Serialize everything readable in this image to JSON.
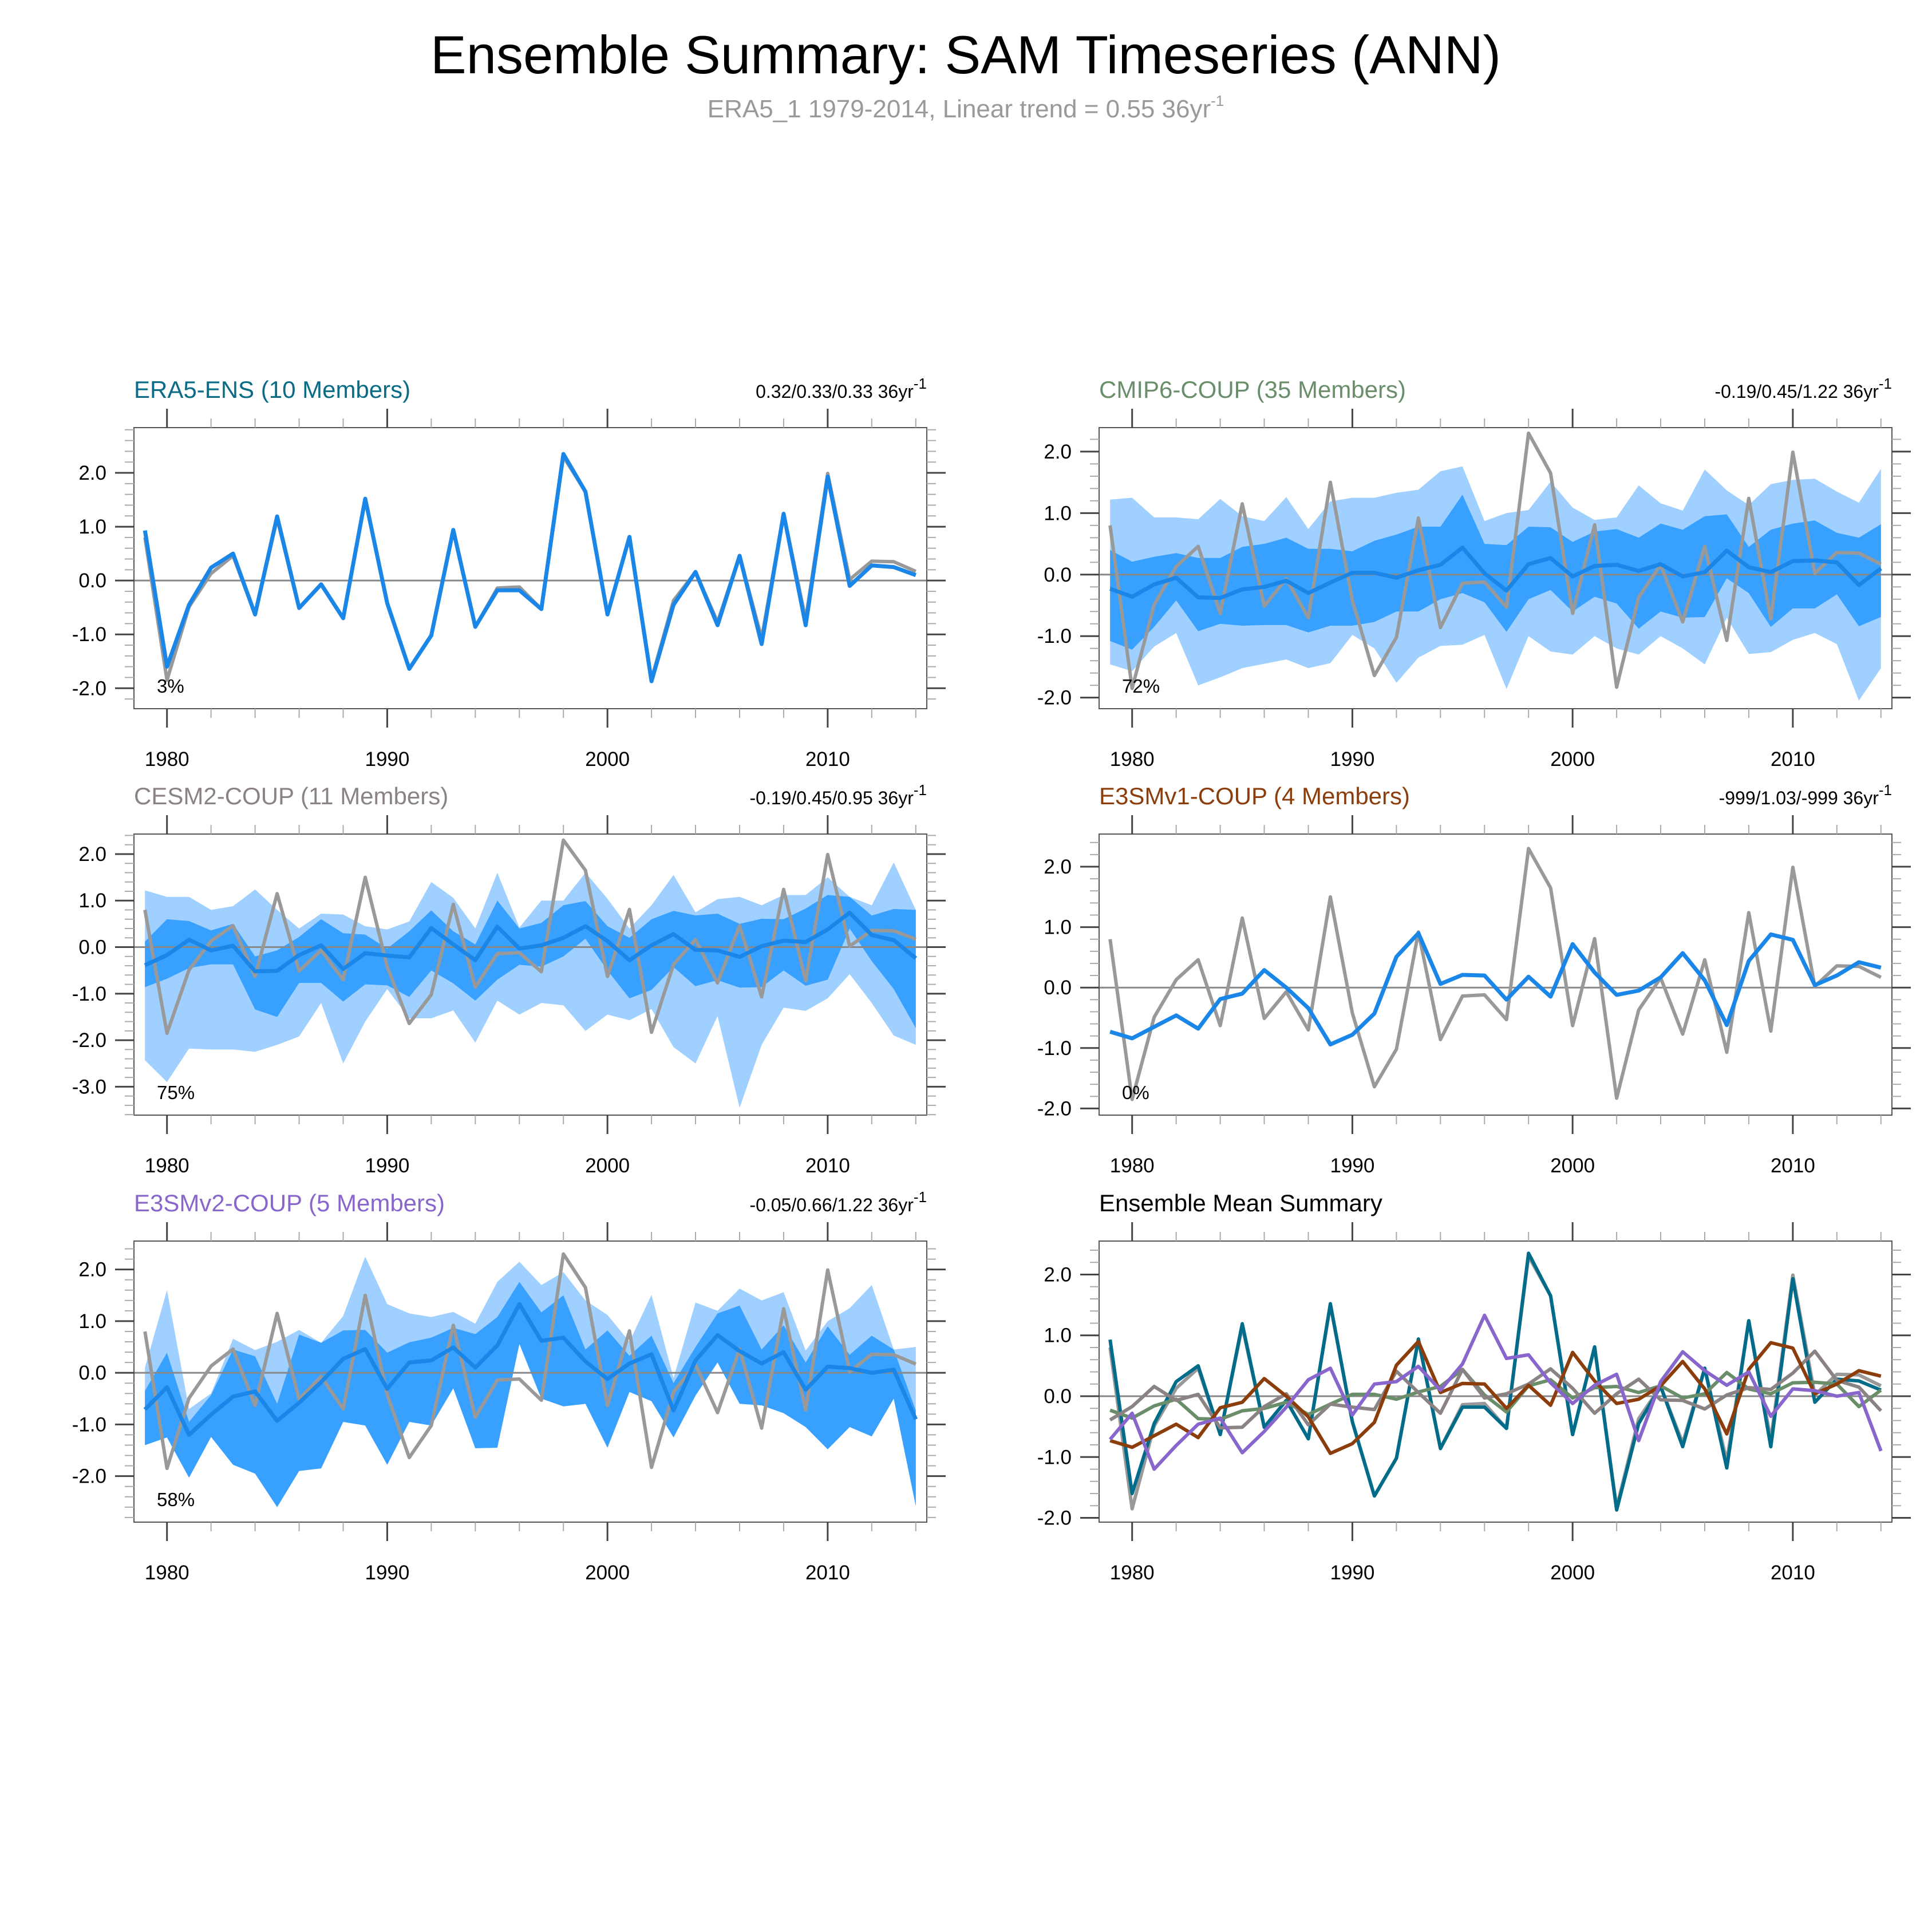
{
  "title": "Ensemble Summary: SAM Timeseries (ANN)",
  "subtitle": {
    "text": "ERA5_1 1979-2014, Linear trend = 0.55 36yr",
    "sup": "-1"
  },
  "colors": {
    "light_band": "#a0d0ff",
    "dark_band": "#38a0ff",
    "mean_line": "#1a86e8",
    "obs_line": "#999999",
    "zero_line": "#888888"
  },
  "chart_data": [
    {
      "type": "line",
      "title": "ERA5-ENS (10 Members)",
      "title_color": "#0a6b86",
      "trend": "0.32/0.33/0.33 36yr",
      "trend_sup": "-1",
      "percent": "3%",
      "ylim": [
        -2.38,
        2.84
      ],
      "yticks": [
        "2.0",
        "1.0",
        "0.0",
        "-1.0",
        "-2.0"
      ],
      "xticks": [
        "1980",
        "1990",
        "2000",
        "2010"
      ],
      "xlim": [
        1978.5,
        2014.5
      ],
      "mean": [
        0.93,
        -1.6,
        -0.45,
        0.24,
        0.5,
        -0.63,
        1.19,
        -0.51,
        -0.07,
        -0.7,
        1.52,
        -0.42,
        -1.64,
        -1.02,
        0.94,
        -0.86,
        -0.18,
        -0.18,
        -0.53,
        2.35,
        1.65,
        -0.63,
        0.81,
        -1.87,
        -0.45,
        0.16,
        -0.83,
        0.46,
        -1.18,
        1.24,
        -0.83,
        1.93,
        -0.1,
        0.28,
        0.25,
        0.1
      ]
    },
    {
      "type": "area",
      "title": "CMIP6-COUP (35 Members)",
      "title_color": "#6a8e6a",
      "trend": "-0.19/0.45/1.22 36yr",
      "trend_sup": "-1",
      "percent": "72%",
      "ylim": [
        -2.18,
        2.39
      ],
      "yticks": [
        "2.0",
        "1.0",
        "0.0",
        "-1.0",
        "-2.0"
      ],
      "xticks": [
        "1980",
        "1990",
        "2000",
        "2010"
      ],
      "xlim": [
        1978.5,
        2014.5
      ],
      "mean": [
        -0.23,
        -0.36,
        -0.16,
        -0.05,
        -0.37,
        -0.38,
        -0.24,
        -0.2,
        -0.1,
        -0.3,
        -0.13,
        0.03,
        0.03,
        -0.05,
        0.07,
        0.16,
        0.44,
        0.02,
        -0.26,
        0.17,
        0.27,
        -0.03,
        0.14,
        0.16,
        0.06,
        0.17,
        -0.03,
        0.04,
        0.39,
        0.12,
        0.04,
        0.22,
        0.23,
        0.2,
        -0.17,
        0.1
      ],
      "inner_upper": [
        0.4,
        0.21,
        0.29,
        0.35,
        0.27,
        0.27,
        0.45,
        0.5,
        0.6,
        0.42,
        0.42,
        0.38,
        0.55,
        0.65,
        0.78,
        0.78,
        1.3,
        0.5,
        0.48,
        0.78,
        0.77,
        0.53,
        0.7,
        0.74,
        0.6,
        0.83,
        0.73,
        0.95,
        0.98,
        0.45,
        0.73,
        0.83,
        0.88,
        0.68,
        0.6,
        0.82
      ],
      "inner_lower": [
        -1.08,
        -1.22,
        -0.85,
        -0.42,
        -0.92,
        -0.8,
        -0.83,
        -0.82,
        -0.82,
        -0.94,
        -0.83,
        -0.83,
        -0.77,
        -0.6,
        -0.6,
        -0.4,
        -0.3,
        -0.45,
        -0.93,
        -0.4,
        -0.25,
        -0.6,
        -0.36,
        -0.47,
        -0.88,
        -0.6,
        -0.7,
        -0.69,
        -0.06,
        -0.3,
        -0.85,
        -0.55,
        -0.55,
        -0.32,
        -0.84,
        -0.69
      ],
      "outer_upper": [
        1.22,
        1.25,
        0.93,
        0.93,
        0.9,
        1.23,
        0.95,
        0.87,
        1.26,
        0.74,
        1.19,
        1.25,
        1.25,
        1.33,
        1.38,
        1.68,
        1.76,
        0.87,
        1.0,
        1.05,
        1.51,
        1.09,
        0.89,
        0.93,
        1.45,
        1.16,
        1.04,
        1.71,
        1.37,
        1.13,
        1.47,
        1.54,
        1.56,
        1.35,
        1.17,
        1.72
      ],
      "outer_lower": [
        -1.46,
        -1.57,
        -1.17,
        -0.95,
        -1.8,
        -1.67,
        -1.52,
        -1.45,
        -1.38,
        -1.52,
        -1.44,
        -0.98,
        -1.2,
        -1.76,
        -1.35,
        -1.16,
        -1.14,
        -0.98,
        -1.86,
        -1.0,
        -1.25,
        -1.3,
        -1.0,
        -1.2,
        -1.3,
        -1.0,
        -1.2,
        -1.46,
        -0.7,
        -1.29,
        -1.26,
        -1.06,
        -0.95,
        -1.13,
        -2.05,
        -1.52
      ]
    },
    {
      "type": "area",
      "title": "CESM2-COUP (11 Members)",
      "title_color": "#8a8283",
      "trend": "-0.19/0.45/0.95 36yr",
      "trend_sup": "-1",
      "percent": "75%",
      "ylim": [
        -3.61,
        2.43
      ],
      "yticks": [
        "2.0",
        "1.0",
        "0.0",
        "-1.0",
        "-2.0",
        "-3.0"
      ],
      "xticks": [
        "1980",
        "1990",
        "2000",
        "2010"
      ],
      "xlim": [
        1978.5,
        2014.5
      ],
      "mean": [
        -0.39,
        -0.17,
        0.16,
        -0.07,
        0.03,
        -0.52,
        -0.51,
        -0.17,
        0.04,
        -0.47,
        -0.13,
        -0.18,
        -0.22,
        0.41,
        0.06,
        -0.28,
        0.44,
        -0.03,
        0.04,
        0.2,
        0.45,
        0.13,
        -0.28,
        0.04,
        0.28,
        -0.06,
        -0.07,
        -0.21,
        0.02,
        0.14,
        0.11,
        0.38,
        0.74,
        0.26,
        0.15,
        -0.24
      ],
      "inner_upper": [
        0.12,
        0.6,
        0.56,
        0.36,
        0.5,
        -0.2,
        -0.07,
        0.22,
        0.6,
        0.3,
        0.27,
        -0.03,
        0.34,
        0.79,
        0.34,
        0.06,
        1.0,
        0.4,
        0.52,
        0.9,
        0.99,
        0.45,
        0.2,
        0.6,
        0.78,
        0.68,
        0.72,
        0.5,
        0.61,
        0.6,
        0.83,
        1.12,
        1.08,
        0.68,
        0.82,
        0.8
      ],
      "inner_lower": [
        -0.86,
        -0.68,
        -0.45,
        -0.37,
        -0.37,
        -1.34,
        -1.5,
        -0.77,
        -0.77,
        -1.17,
        -0.8,
        -0.82,
        -1.07,
        -0.5,
        -0.78,
        -1.15,
        -0.7,
        -0.38,
        -0.42,
        -0.2,
        0.18,
        -0.5,
        -1.1,
        -0.92,
        -0.43,
        -0.84,
        -0.71,
        -0.87,
        -0.86,
        -0.5,
        -0.83,
        -0.7,
        0.4,
        -0.3,
        -0.9,
        -1.74
      ],
      "outer_upper": [
        1.22,
        1.08,
        1.08,
        0.8,
        0.88,
        1.24,
        0.8,
        0.4,
        0.72,
        0.7,
        0.45,
        0.38,
        0.55,
        1.4,
        1.06,
        0.4,
        1.6,
        0.42,
        1.0,
        1.0,
        1.6,
        1.04,
        0.4,
        0.9,
        1.55,
        0.75,
        1.03,
        1.08,
        0.9,
        1.12,
        1.12,
        1.5,
        1.08,
        0.9,
        1.82,
        0.8
      ],
      "outer_lower": [
        -2.43,
        -2.9,
        -2.18,
        -2.2,
        -2.2,
        -2.25,
        -2.1,
        -1.92,
        -1.2,
        -2.5,
        -1.6,
        -0.9,
        -1.53,
        -1.53,
        -1.36,
        -2.05,
        -1.15,
        -1.45,
        -1.2,
        -1.25,
        -1.8,
        -1.45,
        -1.57,
        -1.33,
        -2.15,
        -2.5,
        -1.48,
        -3.45,
        -2.1,
        -1.3,
        -1.37,
        -1.1,
        -0.58,
        -1.2,
        -1.9,
        -2.1
      ]
    },
    {
      "type": "line",
      "title": "E3SMv1-COUP (4 Members)",
      "title_color": "#8b3d0c",
      "trend": "-999/1.03/-999 36yr",
      "trend_sup": "-1",
      "percent": "0%",
      "ylim": [
        -2.11,
        2.54
      ],
      "yticks": [
        "2.0",
        "1.0",
        "0.0",
        "-1.0",
        "-2.0"
      ],
      "xticks": [
        "1980",
        "1990",
        "2000",
        "2010"
      ],
      "xlim": [
        1978.5,
        2014.5
      ],
      "mean": [
        -0.73,
        -0.84,
        -0.65,
        -0.46,
        -0.68,
        -0.19,
        -0.1,
        0.29,
        0.0,
        -0.34,
        -0.94,
        -0.78,
        -0.43,
        0.51,
        0.9,
        0.06,
        0.21,
        0.2,
        -0.2,
        0.18,
        -0.15,
        0.72,
        0.25,
        -0.12,
        -0.05,
        0.17,
        0.57,
        0.12,
        -0.62,
        0.44,
        0.88,
        0.79,
        0.04,
        0.2,
        0.42,
        0.33
      ]
    },
    {
      "type": "area",
      "title": "E3SMv2-COUP (5 Members)",
      "title_color": "#8866cc",
      "trend": "-0.05/0.66/1.22 36yr",
      "trend_sup": "-1",
      "percent": "58%",
      "ylim": [
        -2.89,
        2.55
      ],
      "yticks": [
        "2.0",
        "1.0",
        "0.0",
        "-1.0",
        "-2.0"
      ],
      "xticks": [
        "1980",
        "1990",
        "2000",
        "2010"
      ],
      "xlim": [
        1978.5,
        2014.5
      ],
      "mean": [
        -0.71,
        -0.28,
        -1.2,
        -0.81,
        -0.46,
        -0.36,
        -0.93,
        -0.58,
        -0.18,
        0.27,
        0.46,
        -0.31,
        0.2,
        0.24,
        0.49,
        0.1,
        0.53,
        1.33,
        0.62,
        0.68,
        0.22,
        -0.12,
        0.18,
        0.36,
        -0.73,
        0.24,
        0.73,
        0.42,
        0.18,
        0.4,
        -0.33,
        0.12,
        0.09,
        0.0,
        0.06,
        -0.9
      ],
      "inner_upper": [
        -0.35,
        0.39,
        -0.95,
        -0.43,
        0.45,
        0.32,
        -0.6,
        0.74,
        0.58,
        0.82,
        0.83,
        0.39,
        0.59,
        0.68,
        0.87,
        0.75,
        1.08,
        1.76,
        1.17,
        1.5,
        0.45,
        0.82,
        0.33,
        0.72,
        -0.2,
        0.5,
        1.15,
        1.3,
        0.45,
        0.92,
        0.2,
        0.9,
        0.35,
        0.72,
        0.45,
        -0.73
      ],
      "inner_lower": [
        -1.4,
        -1.25,
        -2.03,
        -1.24,
        -1.78,
        -1.95,
        -2.6,
        -1.9,
        -1.85,
        -0.95,
        -1.02,
        -1.78,
        -0.95,
        -1.02,
        -0.3,
        -1.46,
        -1.45,
        0.56,
        -0.5,
        -0.65,
        -0.6,
        -1.45,
        -0.37,
        -0.55,
        -1.25,
        -0.44,
        0.2,
        -0.6,
        -0.63,
        -0.78,
        -1.05,
        -1.48,
        -1.05,
        -1.23,
        -0.5,
        -2.58
      ],
      "outer_upper": [
        0.1,
        1.6,
        -0.7,
        -0.4,
        0.66,
        0.44,
        0.6,
        0.83,
        0.58,
        1.1,
        2.25,
        1.33,
        1.15,
        1.08,
        1.18,
        0.95,
        1.76,
        2.15,
        1.7,
        1.95,
        1.4,
        1.12,
        0.6,
        1.51,
        -0.1,
        1.36,
        1.2,
        1.63,
        1.4,
        1.56,
        0.43,
        1.0,
        1.25,
        1.7,
        0.45,
        0.5
      ],
      "outer_lower": [
        -1.4,
        -1.25,
        -2.03,
        -1.24,
        -1.78,
        -1.95,
        -2.6,
        -1.9,
        -1.85,
        -0.95,
        -1.02,
        -1.78,
        -0.95,
        -1.02,
        -0.3,
        -1.46,
        -1.45,
        0.56,
        -0.5,
        -0.65,
        -0.6,
        -1.45,
        -0.37,
        -0.55,
        -1.25,
        -0.44,
        0.2,
        -0.6,
        -0.63,
        -0.78,
        -1.05,
        -1.48,
        -1.05,
        -1.23,
        -0.5,
        -2.58
      ]
    },
    {
      "type": "line",
      "title": "Ensemble Mean Summary",
      "title_color": "#000000",
      "percent": "",
      "ylim": [
        -2.07,
        2.55
      ],
      "yticks": [
        "2.0",
        "1.0",
        "0.0",
        "-1.0",
        "-2.0"
      ],
      "xticks": [
        "1980",
        "1990",
        "2000",
        "2010"
      ],
      "xlim": [
        1978.5,
        2014.5
      ],
      "series_colors": [
        "#006c8a",
        "#6a8e6a",
        "#8a8283",
        "#8b3d0c",
        "#8866cc"
      ]
    }
  ],
  "years_start": 1979,
  "years_end": 2014,
  "observations": [
    0.8,
    -1.85,
    -0.49,
    0.13,
    0.46,
    -0.63,
    1.15,
    -0.51,
    -0.07,
    -0.7,
    1.5,
    -0.42,
    -1.64,
    -1.02,
    0.92,
    -0.86,
    -0.14,
    -0.12,
    -0.53,
    2.3,
    1.65,
    -0.63,
    0.81,
    -1.83,
    -0.37,
    0.16,
    -0.77,
    0.46,
    -1.07,
    1.24,
    -0.72,
    1.99,
    0.02,
    0.36,
    0.35,
    0.17
  ]
}
